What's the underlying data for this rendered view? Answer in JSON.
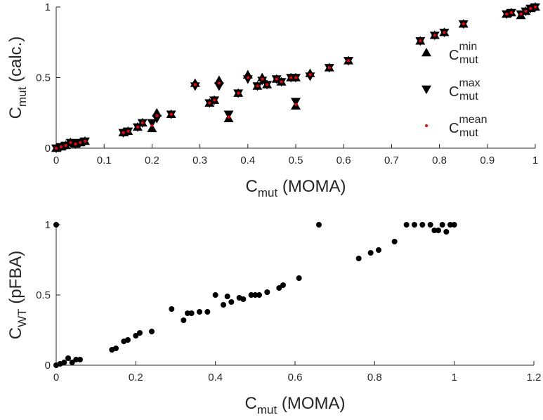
{
  "chart_data": [
    {
      "type": "scatter",
      "xlabel": {
        "symbol": "C",
        "subscript": "mut",
        "text": "(MOMA)"
      },
      "ylabel": {
        "symbol": "C",
        "subscript": "mut",
        "text": "(calc.)"
      },
      "xlim": [
        0,
        1
      ],
      "xticks": [
        0,
        0.1,
        0.2,
        0.3,
        0.4,
        0.5,
        0.6,
        0.7,
        0.8,
        0.9,
        1
      ],
      "ylim": [
        0,
        1
      ],
      "yticks": [
        0,
        0.5,
        1
      ],
      "legend": "right",
      "x": [
        0,
        0.01,
        0.02,
        0.03,
        0.04,
        0.05,
        0.06,
        0.14,
        0.15,
        0.17,
        0.18,
        0.2,
        0.21,
        0.24,
        0.29,
        0.32,
        0.33,
        0.34,
        0.36,
        0.38,
        0.4,
        0.42,
        0.43,
        0.44,
        0.46,
        0.47,
        0.49,
        0.5,
        0.5,
        0.53,
        0.57,
        0.61,
        0.76,
        0.79,
        0.81,
        0.85,
        0.94,
        0.95,
        0.97,
        0.98,
        0.99,
        1
      ],
      "series": [
        {
          "name": "C",
          "superscript": "min",
          "subscript": "mut",
          "marker": "triangle-up",
          "color": "#000000",
          "values": [
            0,
            0.01,
            0.02,
            0.04,
            0.03,
            0.04,
            0.05,
            0.11,
            0.12,
            0.15,
            0.18,
            0.14,
            0.25,
            0.24,
            0.46,
            0.32,
            0.34,
            0.48,
            0.21,
            0.39,
            0.52,
            0.44,
            0.5,
            0.45,
            0.49,
            0.47,
            0.5,
            0.5,
            0.3,
            0.53,
            0.57,
            0.62,
            0.76,
            0.8,
            0.82,
            0.88,
            0.95,
            0.96,
            0.94,
            0.97,
            0.99,
            1
          ]
        },
        {
          "name": "C",
          "superscript": "max",
          "subscript": "mut",
          "marker": "triangle-down",
          "color": "#000000",
          "values": [
            0,
            0.01,
            0.02,
            0.04,
            0.03,
            0.04,
            0.05,
            0.11,
            0.12,
            0.15,
            0.18,
            0.18,
            0.21,
            0.24,
            0.44,
            0.32,
            0.34,
            0.44,
            0.24,
            0.39,
            0.49,
            0.44,
            0.48,
            0.45,
            0.49,
            0.47,
            0.5,
            0.5,
            0.33,
            0.51,
            0.57,
            0.62,
            0.76,
            0.8,
            0.82,
            0.88,
            0.95,
            0.96,
            0.95,
            0.97,
            0.99,
            1
          ]
        },
        {
          "name": "C",
          "superscript": "mean",
          "subscript": "mut",
          "marker": "dot",
          "color": "#ff0000",
          "values": [
            0,
            0.01,
            0.02,
            0.04,
            0.03,
            0.04,
            0.05,
            0.11,
            0.12,
            0.15,
            0.18,
            0.16,
            0.23,
            0.24,
            0.45,
            0.32,
            0.34,
            0.46,
            0.22,
            0.39,
            0.5,
            0.44,
            0.49,
            0.45,
            0.49,
            0.47,
            0.5,
            0.5,
            0.31,
            0.52,
            0.57,
            0.62,
            0.76,
            0.8,
            0.82,
            0.88,
            0.95,
            0.96,
            0.95,
            0.97,
            0.99,
            1
          ]
        }
      ]
    },
    {
      "type": "scatter",
      "xlabel": {
        "symbol": "C",
        "subscript": "mut",
        "text": "(MOMA)"
      },
      "ylabel": {
        "symbol": "C",
        "subscript": "WT",
        "text": "(pFBA)"
      },
      "xlim": [
        0,
        1.2
      ],
      "xticks": [
        0,
        0.2,
        0.4,
        0.6,
        0.8,
        1,
        1.2
      ],
      "ylim": [
        0,
        1
      ],
      "yticks": [
        0,
        0.5,
        1
      ],
      "x": [
        0,
        0,
        0.01,
        0.02,
        0.03,
        0.04,
        0.05,
        0.06,
        0.14,
        0.15,
        0.17,
        0.18,
        0.2,
        0.21,
        0.24,
        0.29,
        0.32,
        0.33,
        0.34,
        0.36,
        0.38,
        0.4,
        0.42,
        0.43,
        0.44,
        0.46,
        0.47,
        0.49,
        0.5,
        0.51,
        0.53,
        0.56,
        0.57,
        0.61,
        0.66,
        0.76,
        0.79,
        0.81,
        0.85,
        0.88,
        0.9,
        0.92,
        0.94,
        0.95,
        0.96,
        0.97,
        0.98,
        0.99,
        1
      ],
      "series": [
        {
          "marker": "dot",
          "color": "#000000",
          "values": [
            0,
            1,
            0.01,
            0.02,
            0.05,
            0.02,
            0.04,
            0.04,
            0.11,
            0.12,
            0.17,
            0.18,
            0.21,
            0.23,
            0.24,
            0.4,
            0.32,
            0.37,
            0.37,
            0.38,
            0.38,
            0.5,
            0.43,
            0.49,
            0.45,
            0.48,
            0.47,
            0.5,
            0.5,
            0.5,
            0.52,
            0.55,
            0.57,
            0.62,
            1,
            0.76,
            0.8,
            0.82,
            0.88,
            1,
            1,
            1,
            1,
            0.96,
            0.96,
            1,
            0.95,
            1,
            1
          ]
        }
      ]
    }
  ]
}
